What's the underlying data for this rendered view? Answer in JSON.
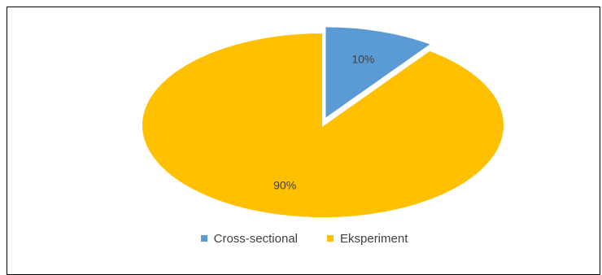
{
  "chart_data": {
    "type": "pie",
    "categories": [
      "Cross-sectional",
      "Eksperiment"
    ],
    "values": [
      10,
      90
    ],
    "data_labels": [
      "10%",
      "90%"
    ],
    "colors": [
      "#5b9bd5",
      "#ffc000"
    ],
    "title": "",
    "legend_position": "bottom"
  },
  "legend": {
    "items": [
      {
        "label": "Cross-sectional",
        "color": "#5b9bd5"
      },
      {
        "label": "Eksperiment",
        "color": "#ffc000"
      }
    ]
  }
}
